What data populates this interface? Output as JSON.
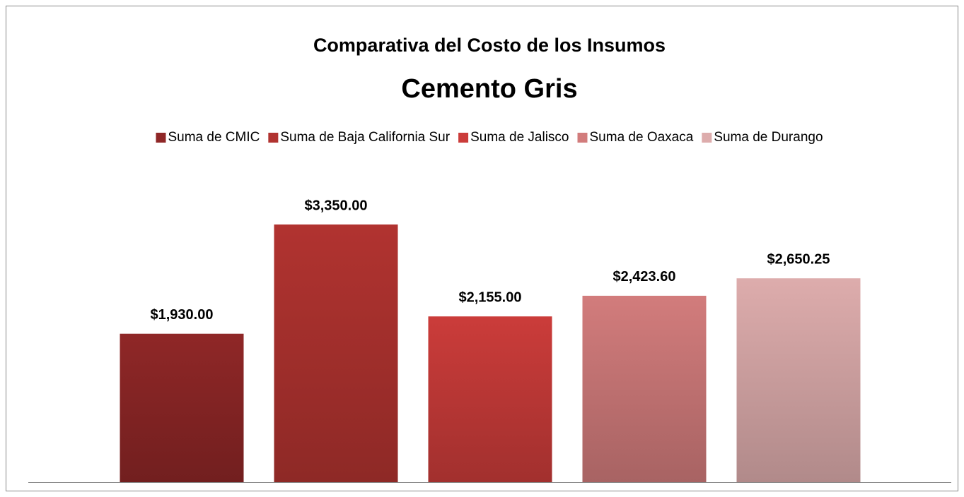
{
  "chart_data": {
    "type": "bar",
    "title": "Comparativa del Costo de los Insumos",
    "subtitle": "Cemento Gris",
    "legend": "top",
    "series": [
      {
        "name": "Suma de CMIC",
        "color": "#8f2727",
        "values": [
          1930
        ],
        "value_labels": [
          "$1,930.00"
        ]
      },
      {
        "name": "Suma de Baja California Sur",
        "color": "#b13330",
        "values": [
          3350
        ],
        "value_labels": [
          "$3,350.00"
        ]
      },
      {
        "name": "Suma de Jalisco",
        "color": "#cb3c3a",
        "values": [
          2155
        ],
        "value_labels": [
          "$2,155.00"
        ]
      },
      {
        "name": "Suma de Oaxaca",
        "color": "#d27c7c",
        "values": [
          2423.6
        ],
        "value_labels": [
          "$2,423.60"
        ]
      },
      {
        "name": "Suma de Durango",
        "color": "#ddacac",
        "values": [
          2650.25
        ],
        "value_labels": [
          "$2,650.25"
        ]
      }
    ]
  }
}
